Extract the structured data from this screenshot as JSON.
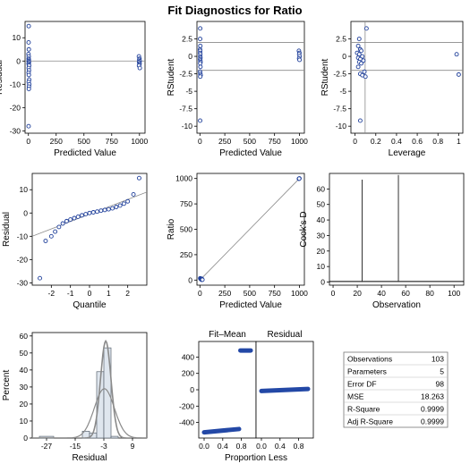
{
  "title": "Fit Diagnostics for Ratio",
  "colors": {
    "point_stroke": "#1f3f9a",
    "point_fill": "#ffffff",
    "ref_line": "#8a8a8a",
    "axis": "#000000",
    "bar_fill": "#dfe6ee",
    "bar_stroke": "#5a6470",
    "curve": "#8a8a8a",
    "dense_fill": "#2348a6"
  },
  "chart_data": [
    {
      "id": "residual-vs-predicted",
      "type": "scatter",
      "xlabel": "Predicted Value",
      "ylabel": "Residual",
      "xlim": [
        -30,
        1050
      ],
      "ylim": [
        -31,
        17
      ],
      "xticks": [
        0,
        250,
        500,
        750,
        1000
      ],
      "yticks": [
        -30,
        -20,
        -10,
        0,
        10
      ],
      "ref_y": [
        0
      ],
      "points": [
        [
          3,
          15
        ],
        [
          2,
          8
        ],
        [
          4,
          5
        ],
        [
          1,
          3
        ],
        [
          3,
          2
        ],
        [
          2,
          1
        ],
        [
          4,
          0.5
        ],
        [
          3,
          0
        ],
        [
          5,
          -0.5
        ],
        [
          2,
          -1
        ],
        [
          4,
          -1.5
        ],
        [
          6,
          -2
        ],
        [
          3,
          -3
        ],
        [
          5,
          -4
        ],
        [
          2,
          -5
        ],
        [
          4,
          -6
        ],
        [
          7,
          -8
        ],
        [
          3,
          -9
        ],
        [
          8,
          -10
        ],
        [
          5,
          -11
        ],
        [
          4,
          -12
        ],
        [
          2,
          -28
        ],
        [
          995,
          2
        ],
        [
          1000,
          1
        ],
        [
          998,
          0.5
        ],
        [
          1002,
          0
        ],
        [
          997,
          -0.5
        ],
        [
          1001,
          -1
        ],
        [
          999,
          -1.5
        ],
        [
          996,
          -2
        ],
        [
          1003,
          -3
        ]
      ]
    },
    {
      "id": "rstudent-vs-predicted",
      "type": "scatter",
      "xlabel": "Predicted Value",
      "ylabel": "RStudent",
      "xlim": [
        -30,
        1050
      ],
      "ylim": [
        -11,
        5
      ],
      "xticks": [
        0,
        250,
        500,
        750,
        1000
      ],
      "yticks": [
        -10.0,
        -7.5,
        -5.0,
        -2.5,
        0.0,
        2.5
      ],
      "ref_y": [
        -2,
        2
      ],
      "points": [
        [
          3,
          4
        ],
        [
          2,
          2.5
        ],
        [
          4,
          1.5
        ],
        [
          1,
          1
        ],
        [
          3,
          0.8
        ],
        [
          2,
          0.5
        ],
        [
          4,
          0.3
        ],
        [
          3,
          0
        ],
        [
          5,
          -0.2
        ],
        [
          2,
          -0.4
        ],
        [
          4,
          -0.6
        ],
        [
          6,
          -0.8
        ],
        [
          3,
          -1
        ],
        [
          5,
          -1.5
        ],
        [
          2,
          -2.2
        ],
        [
          4,
          -2.5
        ],
        [
          7,
          -2.7
        ],
        [
          3,
          -2.9
        ],
        [
          2,
          -9.2
        ],
        [
          995,
          0.8
        ],
        [
          1000,
          0.5
        ],
        [
          998,
          0.3
        ],
        [
          1002,
          0
        ],
        [
          997,
          -0.3
        ],
        [
          1001,
          -0.5
        ]
      ]
    },
    {
      "id": "rstudent-vs-leverage",
      "type": "scatter",
      "xlabel": "Leverage",
      "ylabel": "RStudent",
      "xlim": [
        -0.04,
        1.04
      ],
      "ylim": [
        -11,
        5
      ],
      "xticks": [
        0.0,
        0.2,
        0.4,
        0.6,
        0.8,
        1.0
      ],
      "yticks": [
        -10.0,
        -7.5,
        -5.0,
        -2.5,
        0.0,
        2.5
      ],
      "ref_y": [
        -2,
        2
      ],
      "ref_x": [
        0.097
      ],
      "points": [
        [
          0.11,
          4
        ],
        [
          0.04,
          2.5
        ],
        [
          0.03,
          1.5
        ],
        [
          0.05,
          1
        ],
        [
          0.06,
          0.8
        ],
        [
          0.02,
          0.5
        ],
        [
          0.04,
          0.3
        ],
        [
          0.07,
          0
        ],
        [
          0.03,
          -0.2
        ],
        [
          0.05,
          -0.4
        ],
        [
          0.08,
          -0.6
        ],
        [
          0.04,
          -0.8
        ],
        [
          0.06,
          -1
        ],
        [
          0.03,
          -1.5
        ],
        [
          0.09,
          -2.2
        ],
        [
          0.05,
          -2.5
        ],
        [
          0.07,
          -2.7
        ],
        [
          0.1,
          -2.9
        ],
        [
          0.05,
          -9.2
        ],
        [
          0.98,
          0.3
        ],
        [
          1.0,
          -2.6
        ]
      ]
    },
    {
      "id": "residual-qq",
      "type": "scatter",
      "xlabel": "Quantile",
      "ylabel": "Residual",
      "xlim": [
        -3,
        3
      ],
      "ylim": [
        -31,
        17
      ],
      "xticks": [
        -2,
        -1,
        0,
        1,
        2
      ],
      "yticks": [
        -30,
        -20,
        -10,
        0,
        10
      ],
      "ref_line": [
        [
          -3,
          -10
        ],
        [
          3,
          9
        ]
      ],
      "points": [
        [
          -2.6,
          -28
        ],
        [
          -2.3,
          -12
        ],
        [
          -2.0,
          -10
        ],
        [
          -1.8,
          -8
        ],
        [
          -1.6,
          -6
        ],
        [
          -1.4,
          -4.5
        ],
        [
          -1.2,
          -3.5
        ],
        [
          -1.0,
          -2.8
        ],
        [
          -0.8,
          -2.2
        ],
        [
          -0.6,
          -1.6
        ],
        [
          -0.4,
          -1
        ],
        [
          -0.2,
          -0.5
        ],
        [
          0,
          0
        ],
        [
          0.2,
          0.3
        ],
        [
          0.4,
          0.6
        ],
        [
          0.6,
          1
        ],
        [
          0.8,
          1.3
        ],
        [
          1.0,
          1.6
        ],
        [
          1.2,
          2
        ],
        [
          1.4,
          2.6
        ],
        [
          1.6,
          3.2
        ],
        [
          1.8,
          4
        ],
        [
          2.0,
          5
        ],
        [
          2.3,
          8
        ],
        [
          2.6,
          15
        ]
      ]
    },
    {
      "id": "ratio-vs-predicted",
      "type": "scatter",
      "xlabel": "Predicted Value",
      "ylabel": "Ratio",
      "xlim": [
        -30,
        1050
      ],
      "ylim": [
        -50,
        1050
      ],
      "xticks": [
        0,
        250,
        500,
        750,
        1000
      ],
      "yticks": [
        0,
        250,
        500,
        750,
        1000
      ],
      "ref_line": [
        [
          0,
          0
        ],
        [
          1000,
          1000
        ]
      ],
      "points": [
        [
          3,
          18
        ],
        [
          5,
          15
        ],
        [
          8,
          12
        ],
        [
          10,
          10
        ],
        [
          12,
          8
        ],
        [
          15,
          5
        ],
        [
          18,
          3
        ],
        [
          20,
          12
        ],
        [
          22,
          6
        ],
        [
          25,
          4
        ],
        [
          995,
          997
        ],
        [
          1000,
          1001
        ],
        [
          998,
          999
        ]
      ]
    },
    {
      "id": "cooks-d",
      "type": "bar",
      "xlabel": "Observation",
      "ylabel": "Cook's D",
      "xlim": [
        -3,
        108
      ],
      "ylim": [
        -2,
        70
      ],
      "xticks": [
        0,
        20,
        40,
        60,
        80,
        100
      ],
      "yticks": [
        0,
        10,
        20,
        30,
        40,
        50,
        60
      ],
      "needles": [
        [
          24,
          66
        ],
        [
          54,
          69
        ]
      ]
    },
    {
      "id": "residual-histogram",
      "type": "bar",
      "xlabel": "Residual",
      "ylabel": "Percent",
      "xlim": [
        -33,
        15
      ],
      "ylim": [
        0,
        62
      ],
      "xticks": [
        -27,
        -15,
        -3,
        9
      ],
      "yticks": [
        0,
        10,
        20,
        30,
        40,
        50,
        60
      ],
      "bins": [
        [
          -30,
          -24,
          1
        ],
        [
          -24,
          -18,
          0
        ],
        [
          -18,
          -12,
          0
        ],
        [
          -12,
          -9,
          4
        ],
        [
          -9,
          -6,
          3
        ],
        [
          -6,
          -3,
          39
        ],
        [
          -3,
          0,
          53
        ],
        [
          0,
          3,
          1
        ]
      ]
    },
    {
      "id": "fit-mean-residual-spread",
      "type": "scatter",
      "xlabel": "Proportion Less",
      "ylim": [
        -590,
        590
      ],
      "yticks": [
        -400,
        -200,
        0,
        200,
        400
      ],
      "panels": [
        {
          "label": "Fit–Mean",
          "xticks": [
            0.0,
            0.4,
            0.8
          ],
          "segments": [
            [
              0.0,
              -520,
              0.75,
              -480
            ],
            [
              0.78,
              480,
              1.0,
              480
            ]
          ]
        },
        {
          "label": "Residual",
          "xticks": [
            0.0,
            0.4,
            0.8
          ],
          "segments": [
            [
              0.0,
              -15,
              1.0,
              10
            ]
          ]
        }
      ]
    },
    {
      "id": "fit-statistics",
      "type": "table",
      "rows": [
        [
          "Observations",
          "103"
        ],
        [
          "Parameters",
          "5"
        ],
        [
          "Error DF",
          "98"
        ],
        [
          "MSE",
          "18.263"
        ],
        [
          "R-Square",
          "0.9999"
        ],
        [
          "Adj R-Square",
          "0.9999"
        ]
      ]
    }
  ]
}
